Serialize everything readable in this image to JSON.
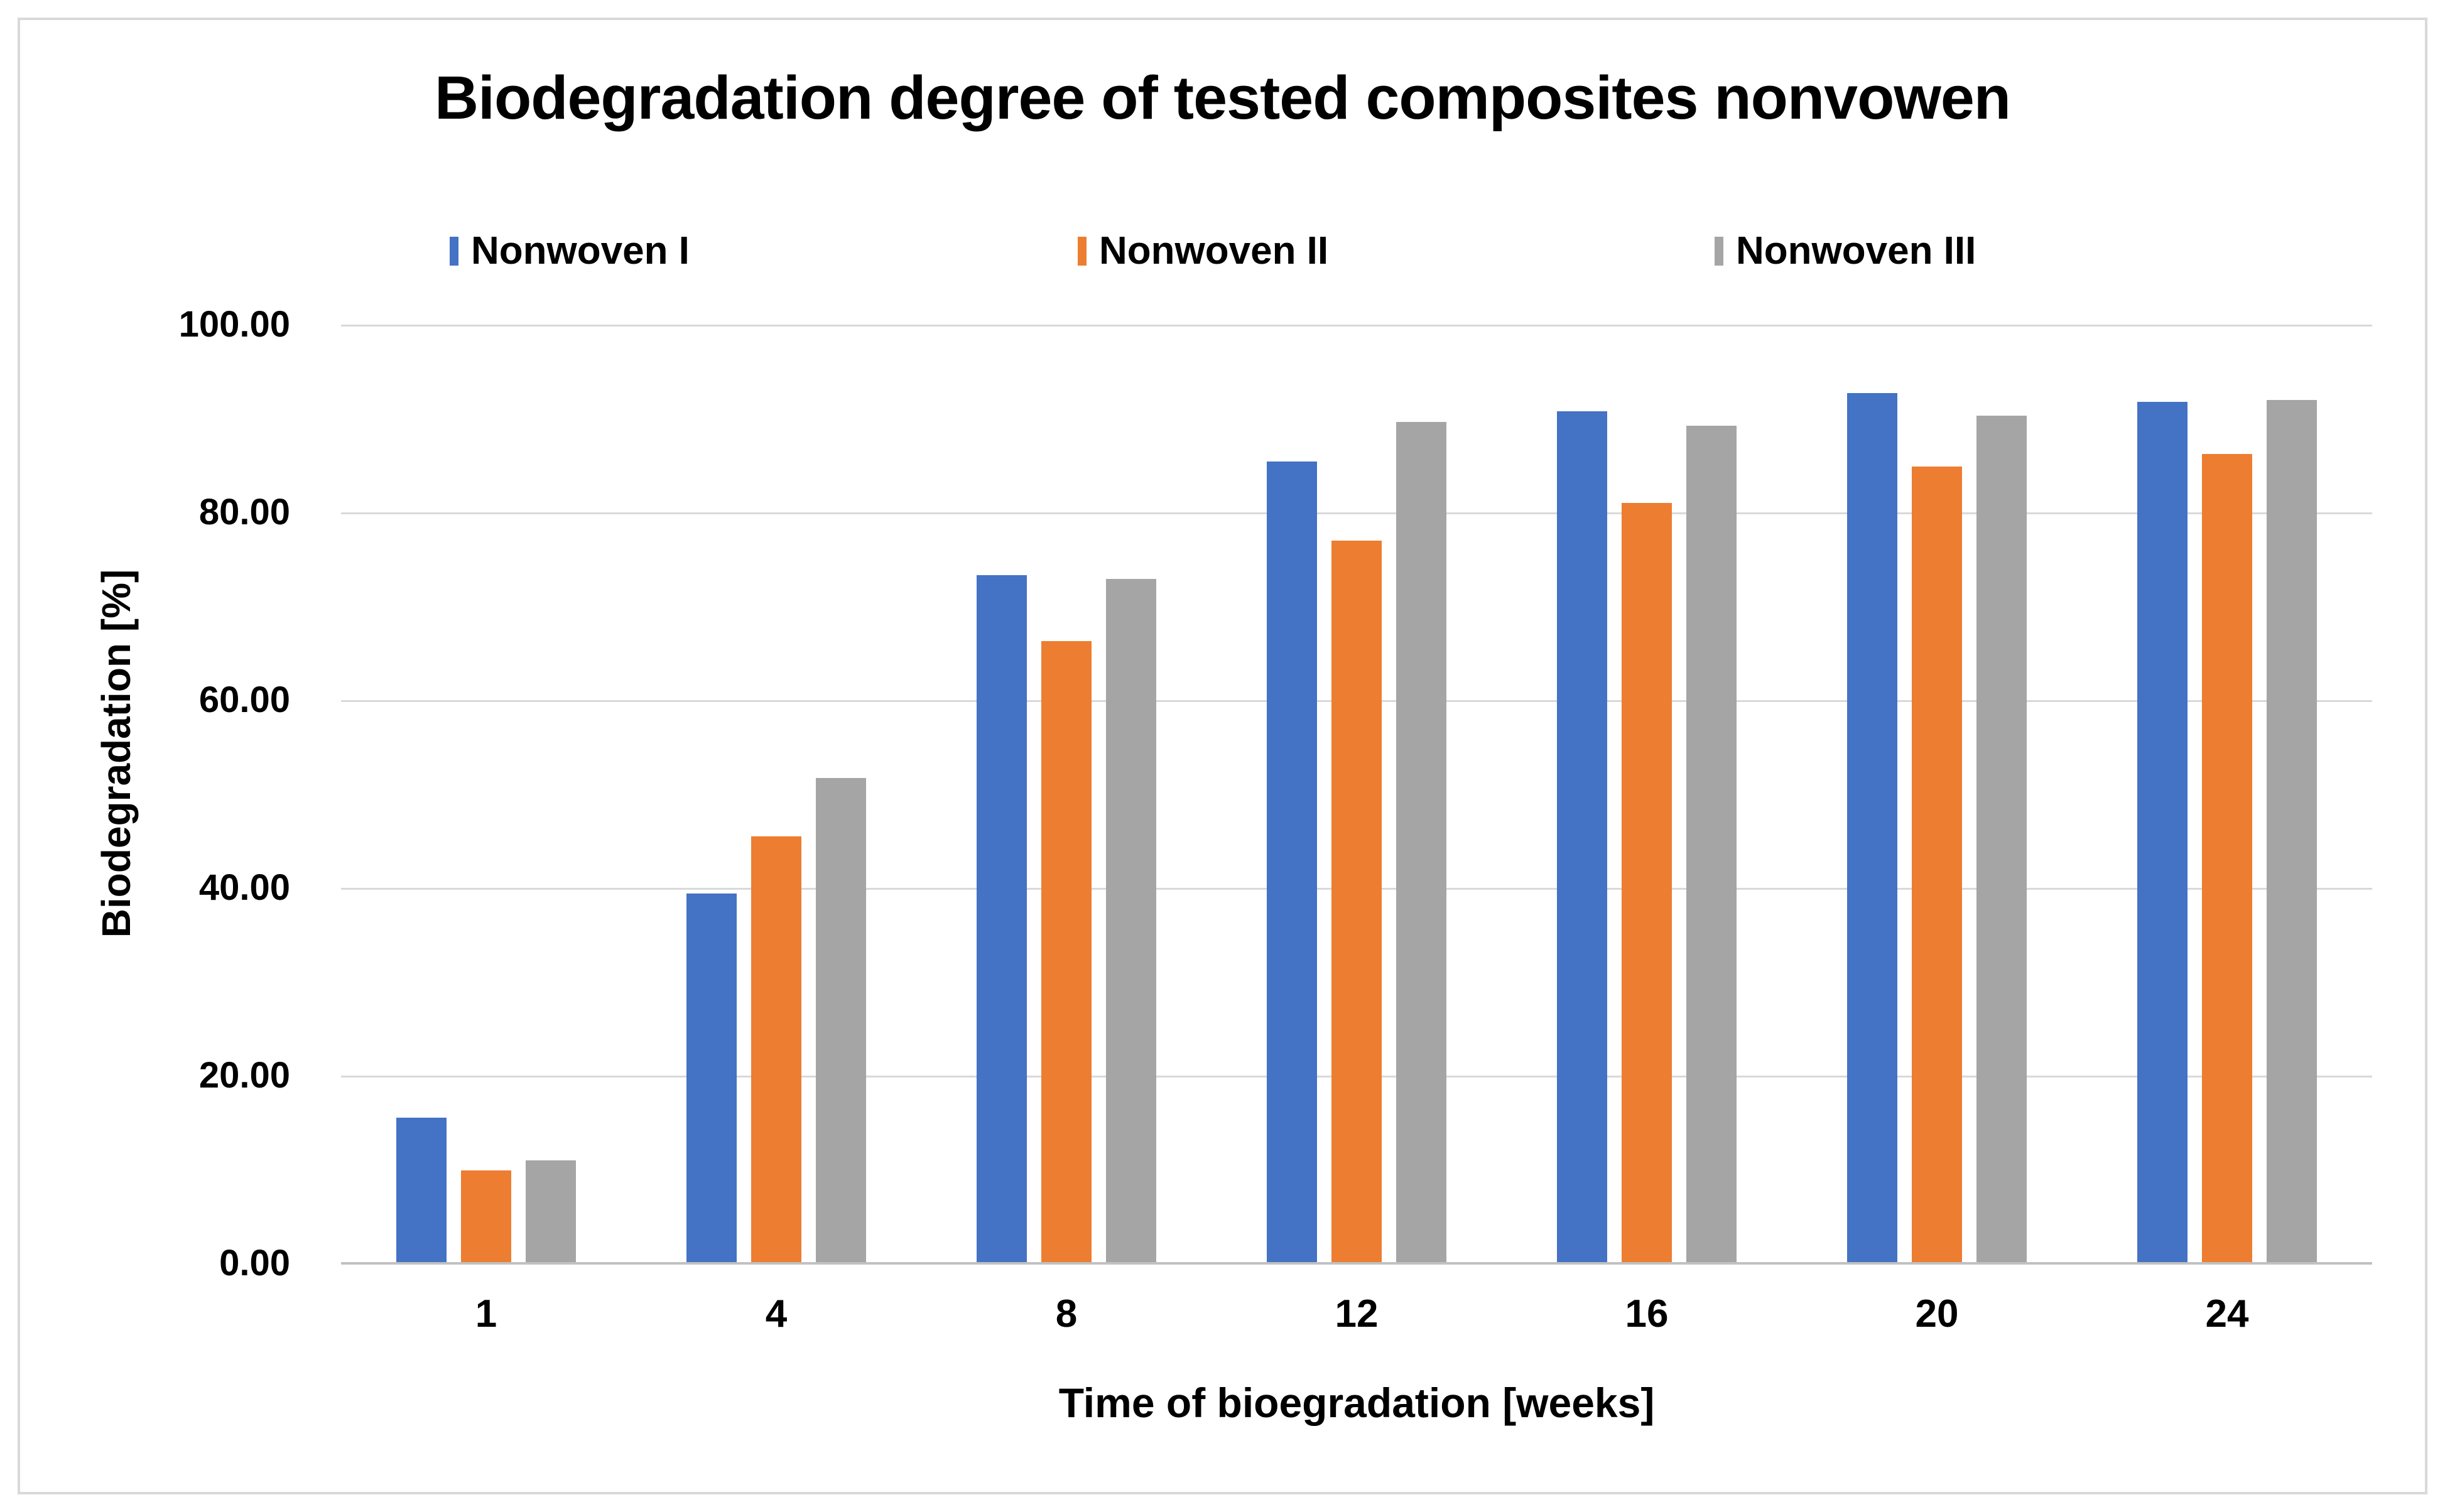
{
  "chart_data": {
    "type": "bar",
    "title": "Biodegradation degree of tested composites nonvowen",
    "xlabel": "Time of bioegradation [weeks]",
    "ylabel": "Biodegradation [%]",
    "categories": [
      "1",
      "4",
      "8",
      "12",
      "16",
      "20",
      "24"
    ],
    "series": [
      {
        "name": "Nonwoven I",
        "color": "#4472C4",
        "values": [
          15.5,
          39.4,
          73.3,
          85.4,
          90.8,
          92.7,
          91.8
        ]
      },
      {
        "name": "Nonwoven II",
        "color": "#ED7D31",
        "values": [
          9.9,
          45.5,
          66.3,
          77.0,
          81.0,
          84.9,
          86.2
        ]
      },
      {
        "name": "Nonwoven III",
        "color": "#A5A5A5",
        "values": [
          11.0,
          51.7,
          72.9,
          89.6,
          89.2,
          90.3,
          92.0
        ]
      }
    ],
    "ylim": [
      0,
      100
    ],
    "ytick_step": 20,
    "ytick_labels": [
      "0.00",
      "20.00",
      "40.00",
      "60.00",
      "80.00",
      "100.00"
    ],
    "grid": true,
    "legend_position": "top",
    "gridline_color": "#D9D9D9",
    "axis_line_color": "#C1C1C1",
    "border_color": "#D9D9D9",
    "text_color": "#000000",
    "background_color": "#FFFFFF"
  }
}
